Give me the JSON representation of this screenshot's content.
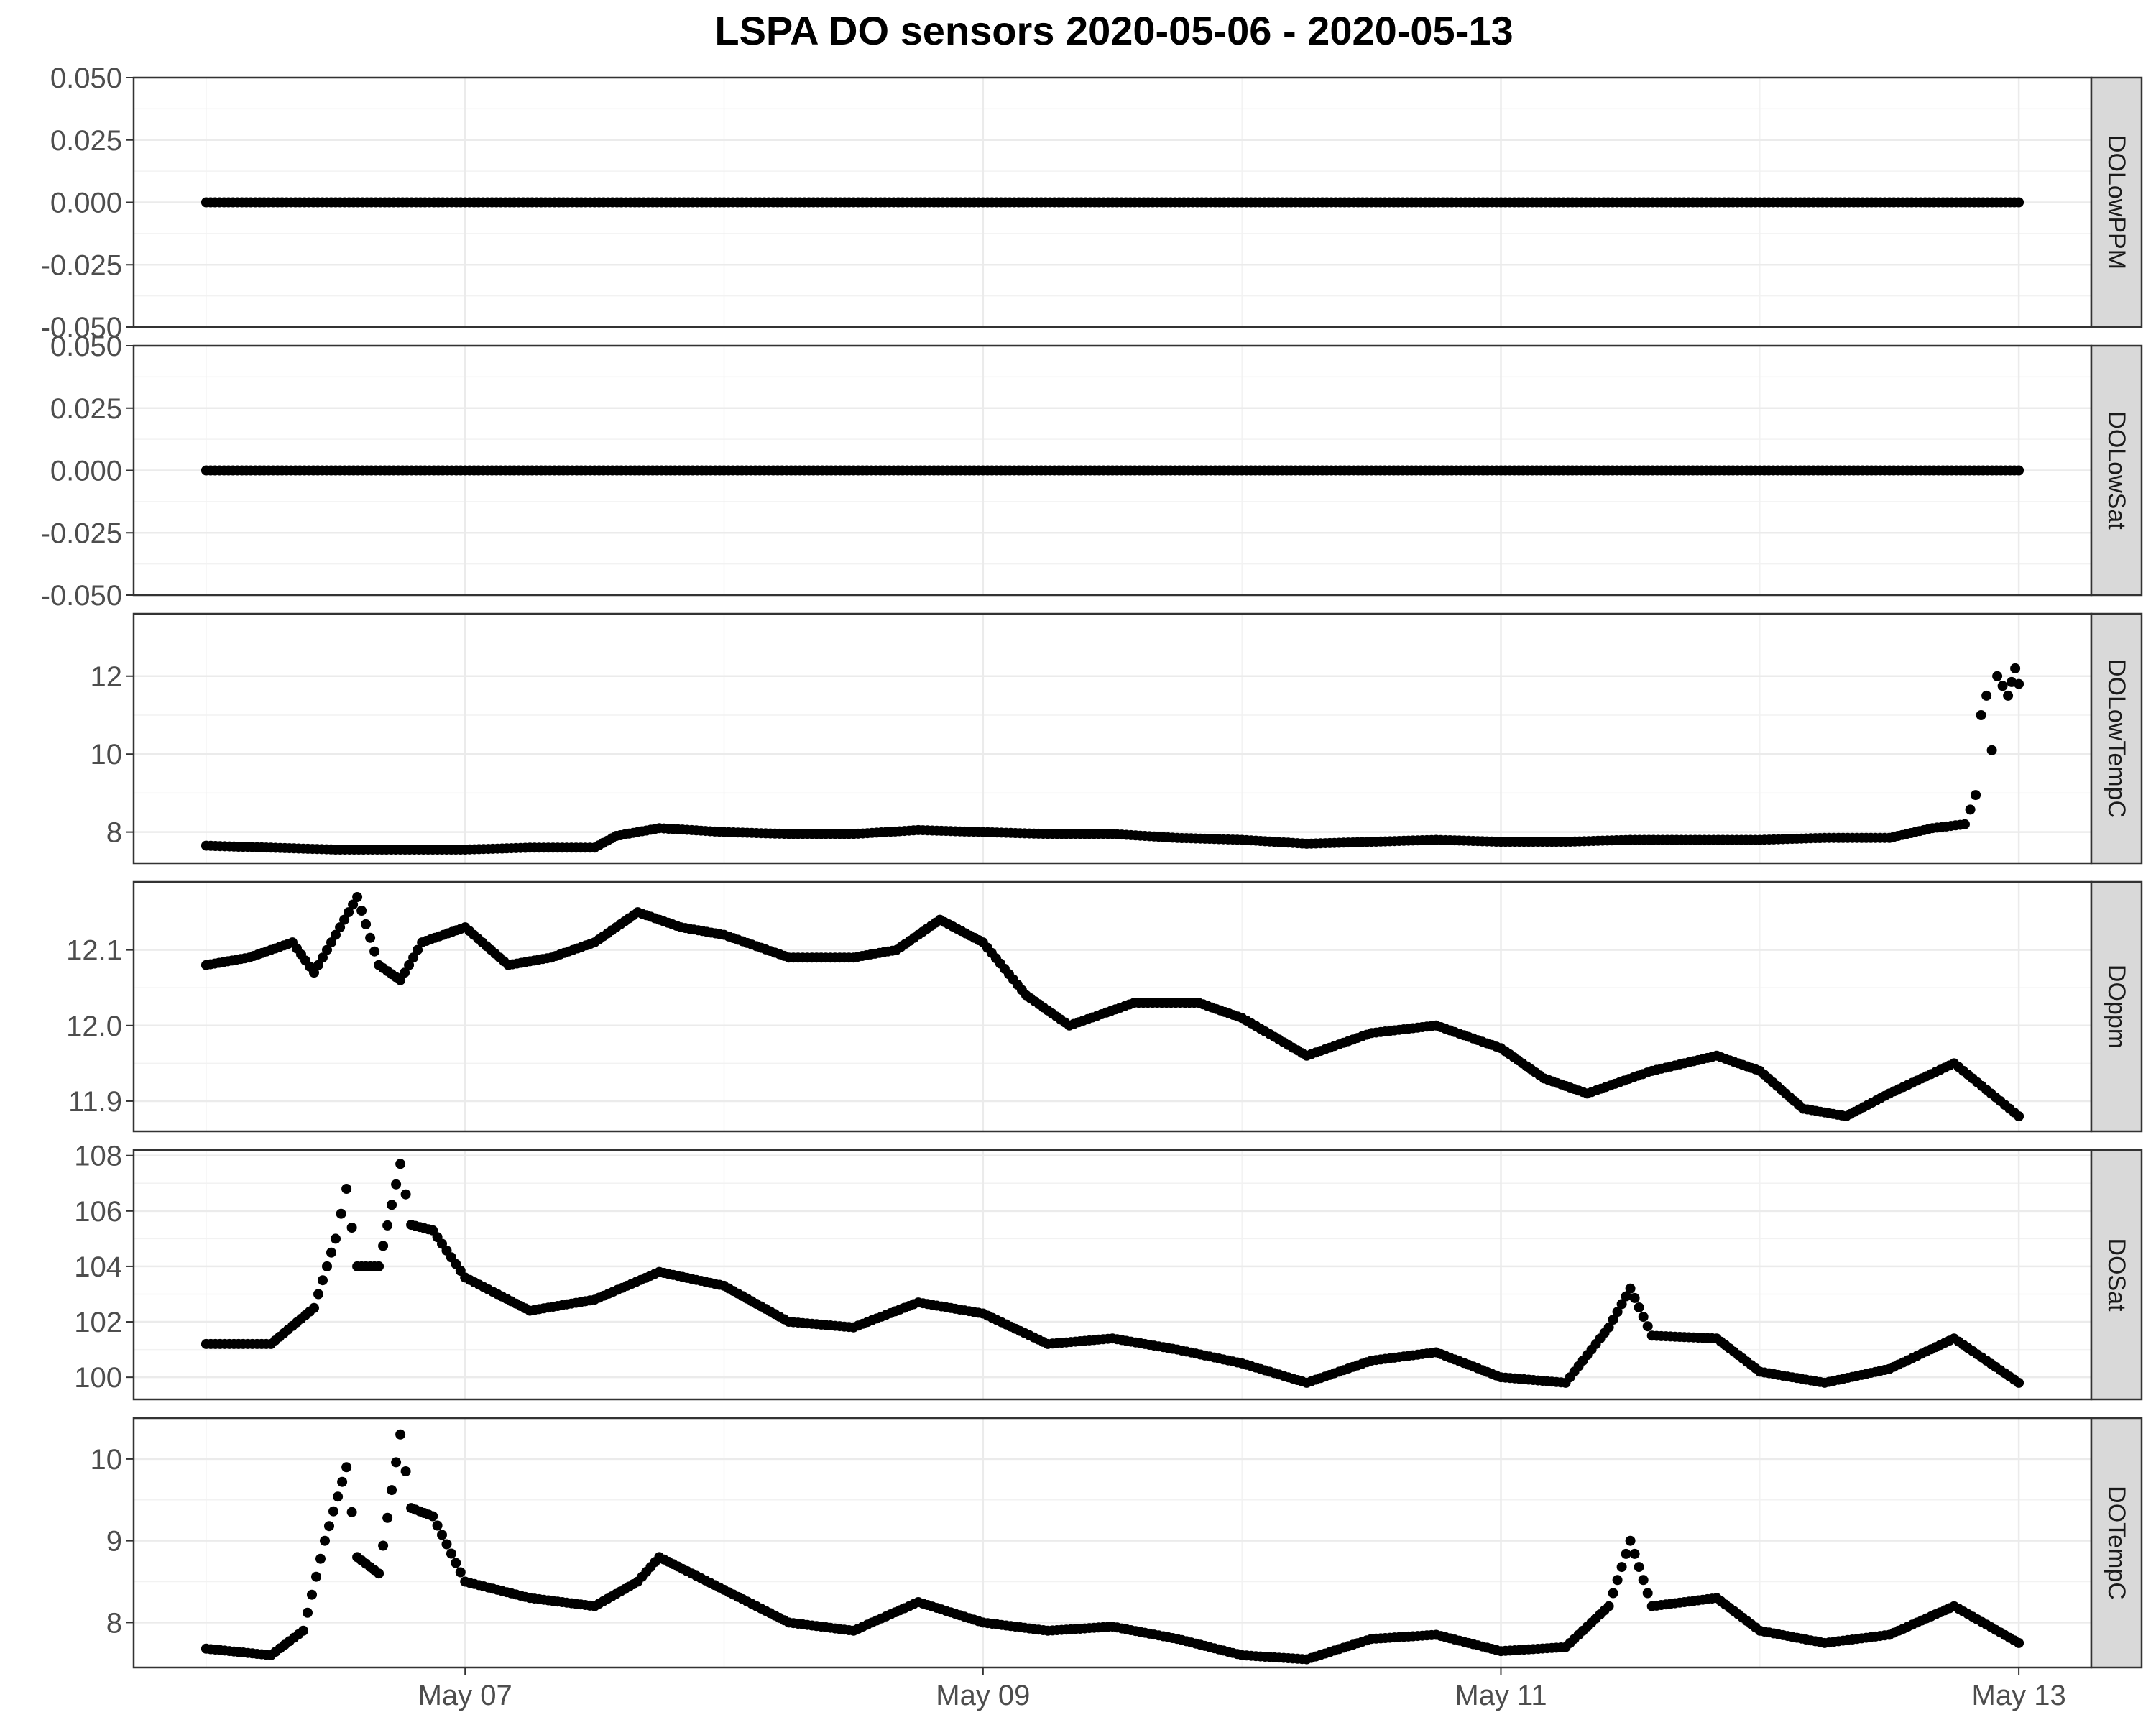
{
  "chart_data": {
    "type": "scatter",
    "title": "LSPA DO sensors 2020-05-06 - 2020-05-13",
    "xlabel": "",
    "ylabel": "",
    "xlim": [
      "2020-05-06T00:00",
      "2020-05-13T00:00"
    ],
    "x_ticks": [
      {
        "value": "2020-05-07",
        "label": "May 07"
      },
      {
        "value": "2020-05-09",
        "label": "May 09"
      },
      {
        "value": "2020-05-11",
        "label": "May 11"
      },
      {
        "value": "2020-05-13",
        "label": "May 13"
      }
    ],
    "grid": true,
    "facets": [
      {
        "name": "DOLowPPM",
        "ylim": [
          -0.05,
          0.05
        ],
        "y_ticks": [
          -0.05,
          -0.025,
          0,
          0.025,
          0.05
        ],
        "y_tick_labels": [
          "-0.050",
          "-0.025",
          "0.000",
          "0.025",
          "0.050"
        ],
        "points": [
          [
            "2020-05-06T00:00",
            0
          ],
          [
            "2020-05-07T00:00",
            0
          ],
          [
            "2020-05-08T00:00",
            0
          ],
          [
            "2020-05-09T00:00",
            0
          ],
          [
            "2020-05-10T00:00",
            0
          ],
          [
            "2020-05-11T00:00",
            0
          ],
          [
            "2020-05-12T00:00",
            0
          ],
          [
            "2020-05-13T00:00",
            0
          ]
        ]
      },
      {
        "name": "DOLowSat",
        "ylim": [
          -0.05,
          0.05
        ],
        "y_ticks": [
          -0.05,
          -0.025,
          0,
          0.025,
          0.05
        ],
        "y_tick_labels": [
          "-0.050",
          "-0.025",
          "0.000",
          "0.025",
          "0.050"
        ],
        "points": [
          [
            "2020-05-06T00:00",
            0
          ],
          [
            "2020-05-07T00:00",
            0
          ],
          [
            "2020-05-08T00:00",
            0
          ],
          [
            "2020-05-09T00:00",
            0
          ],
          [
            "2020-05-10T00:00",
            0
          ],
          [
            "2020-05-11T00:00",
            0
          ],
          [
            "2020-05-12T00:00",
            0
          ],
          [
            "2020-05-13T00:00",
            0
          ]
        ]
      },
      {
        "name": "DOLowTempC",
        "ylim": [
          7.2,
          13.6
        ],
        "y_ticks": [
          8,
          10,
          12
        ],
        "y_tick_labels": [
          "8",
          "10",
          "12"
        ],
        "points": [
          [
            "2020-05-06T00:00",
            7.65
          ],
          [
            "2020-05-06T06:00",
            7.6
          ],
          [
            "2020-05-06T12:00",
            7.55
          ],
          [
            "2020-05-06T18:00",
            7.55
          ],
          [
            "2020-05-07T00:00",
            7.55
          ],
          [
            "2020-05-07T06:00",
            7.6
          ],
          [
            "2020-05-07T12:00",
            7.6
          ],
          [
            "2020-05-07T14:00",
            7.9
          ],
          [
            "2020-05-07T18:00",
            8.1
          ],
          [
            "2020-05-08T00:00",
            8.0
          ],
          [
            "2020-05-08T06:00",
            7.95
          ],
          [
            "2020-05-08T12:00",
            7.95
          ],
          [
            "2020-05-08T18:00",
            8.05
          ],
          [
            "2020-05-09T00:00",
            8.0
          ],
          [
            "2020-05-09T06:00",
            7.95
          ],
          [
            "2020-05-09T12:00",
            7.95
          ],
          [
            "2020-05-09T18:00",
            7.85
          ],
          [
            "2020-05-10T00:00",
            7.8
          ],
          [
            "2020-05-10T06:00",
            7.7
          ],
          [
            "2020-05-10T12:00",
            7.75
          ],
          [
            "2020-05-10T18:00",
            7.8
          ],
          [
            "2020-05-11T00:00",
            7.75
          ],
          [
            "2020-05-11T06:00",
            7.75
          ],
          [
            "2020-05-11T12:00",
            7.8
          ],
          [
            "2020-05-11T18:00",
            7.8
          ],
          [
            "2020-05-12T00:00",
            7.8
          ],
          [
            "2020-05-12T06:00",
            7.85
          ],
          [
            "2020-05-12T12:00",
            7.85
          ],
          [
            "2020-05-12T16:00",
            8.1
          ],
          [
            "2020-05-12T19:00",
            8.2
          ],
          [
            "2020-05-12T20:00",
            8.95
          ],
          [
            "2020-05-12T20:30",
            11.0
          ],
          [
            "2020-05-12T21:00",
            11.5
          ],
          [
            "2020-05-12T21:30",
            10.1
          ],
          [
            "2020-05-12T22:00",
            12.0
          ],
          [
            "2020-05-12T23:00",
            11.5
          ],
          [
            "2020-05-12T23:40",
            12.2
          ],
          [
            "2020-05-13T00:00",
            11.8
          ]
        ]
      },
      {
        "name": "DOppm",
        "ylim": [
          11.86,
          12.19
        ],
        "y_ticks": [
          11.9,
          12.0,
          12.1
        ],
        "y_tick_labels": [
          "11.9",
          "12.0",
          "12.1"
        ],
        "points": [
          [
            "2020-05-06T00:00",
            12.08
          ],
          [
            "2020-05-06T04:00",
            12.09
          ],
          [
            "2020-05-06T08:00",
            12.11
          ],
          [
            "2020-05-06T10:00",
            12.07
          ],
          [
            "2020-05-06T12:00",
            12.12
          ],
          [
            "2020-05-06T14:00",
            12.17
          ],
          [
            "2020-05-06T16:00",
            12.08
          ],
          [
            "2020-05-06T18:00",
            12.06
          ],
          [
            "2020-05-06T20:00",
            12.11
          ],
          [
            "2020-05-07T00:00",
            12.13
          ],
          [
            "2020-05-07T04:00",
            12.08
          ],
          [
            "2020-05-07T08:00",
            12.09
          ],
          [
            "2020-05-07T12:00",
            12.11
          ],
          [
            "2020-05-07T16:00",
            12.15
          ],
          [
            "2020-05-07T20:00",
            12.13
          ],
          [
            "2020-05-08T00:00",
            12.12
          ],
          [
            "2020-05-08T06:00",
            12.09
          ],
          [
            "2020-05-08T12:00",
            12.09
          ],
          [
            "2020-05-08T16:00",
            12.1
          ],
          [
            "2020-05-08T20:00",
            12.14
          ],
          [
            "2020-05-09T00:00",
            12.11
          ],
          [
            "2020-05-09T04:00",
            12.04
          ],
          [
            "2020-05-09T08:00",
            12.0
          ],
          [
            "2020-05-09T14:00",
            12.03
          ],
          [
            "2020-05-09T20:00",
            12.03
          ],
          [
            "2020-05-10T00:00",
            12.01
          ],
          [
            "2020-05-10T06:00",
            11.96
          ],
          [
            "2020-05-10T12:00",
            11.99
          ],
          [
            "2020-05-10T18:00",
            12.0
          ],
          [
            "2020-05-11T00:00",
            11.97
          ],
          [
            "2020-05-11T04:00",
            11.93
          ],
          [
            "2020-05-11T08:00",
            11.91
          ],
          [
            "2020-05-11T14:00",
            11.94
          ],
          [
            "2020-05-11T20:00",
            11.96
          ],
          [
            "2020-05-12T00:00",
            11.94
          ],
          [
            "2020-05-12T04:00",
            11.89
          ],
          [
            "2020-05-12T08:00",
            11.88
          ],
          [
            "2020-05-12T12:00",
            11.91
          ],
          [
            "2020-05-12T18:00",
            11.95
          ],
          [
            "2020-05-13T00:00",
            11.88
          ]
        ]
      },
      {
        "name": "DOSat",
        "ylim": [
          99.2,
          108.2
        ],
        "y_ticks": [
          100,
          102,
          104,
          106,
          108
        ],
        "y_tick_labels": [
          "100",
          "102",
          "104",
          "106",
          "108"
        ],
        "points": [
          [
            "2020-05-06T00:00",
            101.2
          ],
          [
            "2020-05-06T06:00",
            101.2
          ],
          [
            "2020-05-06T10:00",
            102.5
          ],
          [
            "2020-05-06T12:00",
            105.0
          ],
          [
            "2020-05-06T13:00",
            106.8
          ],
          [
            "2020-05-06T14:00",
            104.0
          ],
          [
            "2020-05-06T16:00",
            104.0
          ],
          [
            "2020-05-06T18:00",
            107.7
          ],
          [
            "2020-05-06T19:00",
            105.5
          ],
          [
            "2020-05-06T21:00",
            105.3
          ],
          [
            "2020-05-07T00:00",
            103.6
          ],
          [
            "2020-05-07T06:00",
            102.4
          ],
          [
            "2020-05-07T12:00",
            102.8
          ],
          [
            "2020-05-07T18:00",
            103.8
          ],
          [
            "2020-05-08T00:00",
            103.3
          ],
          [
            "2020-05-08T06:00",
            102.0
          ],
          [
            "2020-05-08T12:00",
            101.8
          ],
          [
            "2020-05-08T18:00",
            102.7
          ],
          [
            "2020-05-09T00:00",
            102.3
          ],
          [
            "2020-05-09T06:00",
            101.2
          ],
          [
            "2020-05-09T12:00",
            101.4
          ],
          [
            "2020-05-09T18:00",
            101.0
          ],
          [
            "2020-05-10T00:00",
            100.5
          ],
          [
            "2020-05-10T06:00",
            99.8
          ],
          [
            "2020-05-10T12:00",
            100.6
          ],
          [
            "2020-05-10T18:00",
            100.9
          ],
          [
            "2020-05-11T00:00",
            100.0
          ],
          [
            "2020-05-11T06:00",
            99.8
          ],
          [
            "2020-05-11T10:00",
            101.8
          ],
          [
            "2020-05-11T12:00",
            103.2
          ],
          [
            "2020-05-11T14:00",
            101.5
          ],
          [
            "2020-05-11T20:00",
            101.4
          ],
          [
            "2020-05-12T00:00",
            100.2
          ],
          [
            "2020-05-12T06:00",
            99.8
          ],
          [
            "2020-05-12T12:00",
            100.3
          ],
          [
            "2020-05-12T18:00",
            101.4
          ],
          [
            "2020-05-13T00:00",
            99.8
          ]
        ]
      },
      {
        "name": "DOTempC",
        "ylim": [
          7.45,
          10.5
        ],
        "y_ticks": [
          8,
          9,
          10
        ],
        "y_tick_labels": [
          "8",
          "9",
          "10"
        ],
        "points": [
          [
            "2020-05-06T00:00",
            7.68
          ],
          [
            "2020-05-06T06:00",
            7.6
          ],
          [
            "2020-05-06T09:00",
            7.9
          ],
          [
            "2020-05-06T11:00",
            9.0
          ],
          [
            "2020-05-06T13:00",
            9.9
          ],
          [
            "2020-05-06T14:00",
            8.8
          ],
          [
            "2020-05-06T16:00",
            8.6
          ],
          [
            "2020-05-06T18:00",
            10.3
          ],
          [
            "2020-05-06T19:00",
            9.4
          ],
          [
            "2020-05-06T21:00",
            9.3
          ],
          [
            "2020-05-07T00:00",
            8.5
          ],
          [
            "2020-05-07T06:00",
            8.3
          ],
          [
            "2020-05-07T12:00",
            8.2
          ],
          [
            "2020-05-07T16:00",
            8.5
          ],
          [
            "2020-05-07T18:00",
            8.8
          ],
          [
            "2020-05-08T00:00",
            8.4
          ],
          [
            "2020-05-08T06:00",
            8.0
          ],
          [
            "2020-05-08T12:00",
            7.9
          ],
          [
            "2020-05-08T18:00",
            8.25
          ],
          [
            "2020-05-09T00:00",
            8.0
          ],
          [
            "2020-05-09T06:00",
            7.9
          ],
          [
            "2020-05-09T12:00",
            7.95
          ],
          [
            "2020-05-09T18:00",
            7.8
          ],
          [
            "2020-05-10T00:00",
            7.6
          ],
          [
            "2020-05-10T06:00",
            7.55
          ],
          [
            "2020-05-10T12:00",
            7.8
          ],
          [
            "2020-05-10T18:00",
            7.85
          ],
          [
            "2020-05-11T00:00",
            7.65
          ],
          [
            "2020-05-11T06:00",
            7.7
          ],
          [
            "2020-05-11T10:00",
            8.2
          ],
          [
            "2020-05-11T12:00",
            9.0
          ],
          [
            "2020-05-11T14:00",
            8.2
          ],
          [
            "2020-05-11T20:00",
            8.3
          ],
          [
            "2020-05-12T00:00",
            7.9
          ],
          [
            "2020-05-12T06:00",
            7.75
          ],
          [
            "2020-05-12T12:00",
            7.85
          ],
          [
            "2020-05-12T18:00",
            8.2
          ],
          [
            "2020-05-13T00:00",
            7.75
          ]
        ]
      }
    ]
  }
}
